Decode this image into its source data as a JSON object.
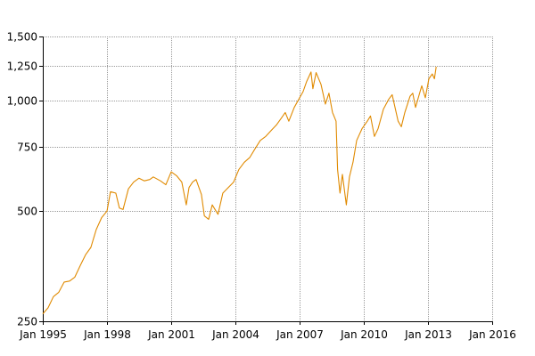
{
  "chart_data": {
    "type": "line",
    "title": "",
    "xlabel": "",
    "ylabel": "",
    "y_scale": "log",
    "xlim": [
      "1995-01-01",
      "2016-01-01"
    ],
    "ylim": [
      250,
      1500
    ],
    "grid": true,
    "legend": "none",
    "x_ticks": [
      {
        "date": "1995-01-01",
        "label": "Jan 1995"
      },
      {
        "date": "1998-01-01",
        "label": "Jan 1998"
      },
      {
        "date": "2001-01-01",
        "label": "Jan 2001"
      },
      {
        "date": "2004-01-01",
        "label": "Jan 2004"
      },
      {
        "date": "2007-01-01",
        "label": "Jan 2007"
      },
      {
        "date": "2010-01-01",
        "label": "Jan 2010"
      },
      {
        "date": "2013-01-01",
        "label": "Jan 2013"
      },
      {
        "date": "2016-01-01",
        "label": "Jan 2016"
      }
    ],
    "y_ticks": [
      {
        "value": 250,
        "label": "250"
      },
      {
        "value": 500,
        "label": "500"
      },
      {
        "value": 750,
        "label": "750"
      },
      {
        "value": 1000,
        "label": "1,000"
      },
      {
        "value": 1250,
        "label": "1,250"
      },
      {
        "value": 1500,
        "label": "1,500"
      }
    ],
    "series": [
      {
        "color": "#e08a00",
        "points": [
          [
            "1995-01-01",
            262
          ],
          [
            "1995-04-01",
            272
          ],
          [
            "1995-07-01",
            292
          ],
          [
            "1995-10-01",
            300
          ],
          [
            "1996-01-01",
            320
          ],
          [
            "1996-04-01",
            322
          ],
          [
            "1996-07-01",
            330
          ],
          [
            "1996-10-01",
            355
          ],
          [
            "1997-01-01",
            380
          ],
          [
            "1997-04-01",
            398
          ],
          [
            "1997-07-01",
            445
          ],
          [
            "1997-10-01",
            480
          ],
          [
            "1998-01-01",
            500
          ],
          [
            "1998-03-01",
            565
          ],
          [
            "1998-06-01",
            560
          ],
          [
            "1998-08-01",
            510
          ],
          [
            "1998-10-01",
            505
          ],
          [
            "1999-01-01",
            575
          ],
          [
            "1999-04-01",
            600
          ],
          [
            "1999-07-01",
            615
          ],
          [
            "1999-10-01",
            605
          ],
          [
            "2000-01-01",
            610
          ],
          [
            "2000-03-01",
            620
          ],
          [
            "2000-07-01",
            605
          ],
          [
            "2000-10-01",
            590
          ],
          [
            "2001-01-01",
            640
          ],
          [
            "2001-04-01",
            625
          ],
          [
            "2001-07-01",
            600
          ],
          [
            "2001-09-15",
            520
          ],
          [
            "2001-11-01",
            580
          ],
          [
            "2002-01-01",
            600
          ],
          [
            "2002-03-01",
            610
          ],
          [
            "2002-06-01",
            555
          ],
          [
            "2002-07-20",
            485
          ],
          [
            "2002-10-01",
            475
          ],
          [
            "2002-12-01",
            520
          ],
          [
            "2003-03-10",
            490
          ],
          [
            "2003-06-01",
            560
          ],
          [
            "2003-09-01",
            580
          ],
          [
            "2003-12-01",
            600
          ],
          [
            "2004-03-01",
            650
          ],
          [
            "2004-06-01",
            680
          ],
          [
            "2004-09-01",
            700
          ],
          [
            "2004-12-01",
            740
          ],
          [
            "2005-03-01",
            780
          ],
          [
            "2005-06-01",
            800
          ],
          [
            "2005-09-01",
            830
          ],
          [
            "2005-12-01",
            860
          ],
          [
            "2006-03-01",
            900
          ],
          [
            "2006-05-01",
            930
          ],
          [
            "2006-07-01",
            880
          ],
          [
            "2006-10-01",
            960
          ],
          [
            "2007-01-01",
            1020
          ],
          [
            "2007-03-01",
            1060
          ],
          [
            "2007-05-01",
            1130
          ],
          [
            "2007-07-15",
            1200
          ],
          [
            "2007-08-15",
            1080
          ],
          [
            "2007-10-10",
            1195
          ],
          [
            "2008-01-01",
            1110
          ],
          [
            "2008-03-15",
            980
          ],
          [
            "2008-05-15",
            1050
          ],
          [
            "2008-07-15",
            930
          ],
          [
            "2008-09-15",
            880
          ],
          [
            "2008-10-10",
            650
          ],
          [
            "2008-11-20",
            560
          ],
          [
            "2009-01-01",
            630
          ],
          [
            "2009-03-09",
            520
          ],
          [
            "2009-05-01",
            620
          ],
          [
            "2009-07-01",
            680
          ],
          [
            "2009-09-01",
            780
          ],
          [
            "2009-12-01",
            840
          ],
          [
            "2010-03-01",
            880
          ],
          [
            "2010-04-25",
            910
          ],
          [
            "2010-07-01",
            800
          ],
          [
            "2010-09-01",
            840
          ],
          [
            "2010-12-01",
            950
          ],
          [
            "2011-03-01",
            1010
          ],
          [
            "2011-04-30",
            1040
          ],
          [
            "2011-08-10",
            880
          ],
          [
            "2011-10-04",
            850
          ],
          [
            "2011-12-01",
            930
          ],
          [
            "2012-03-01",
            1030
          ],
          [
            "2012-04-15",
            1050
          ],
          [
            "2012-06-01",
            960
          ],
          [
            "2012-09-15",
            1100
          ],
          [
            "2012-11-15",
            1020
          ],
          [
            "2013-01-15",
            1150
          ],
          [
            "2013-03-15",
            1185
          ],
          [
            "2013-04-20",
            1150
          ],
          [
            "2013-05-20",
            1240
          ]
        ]
      }
    ]
  }
}
